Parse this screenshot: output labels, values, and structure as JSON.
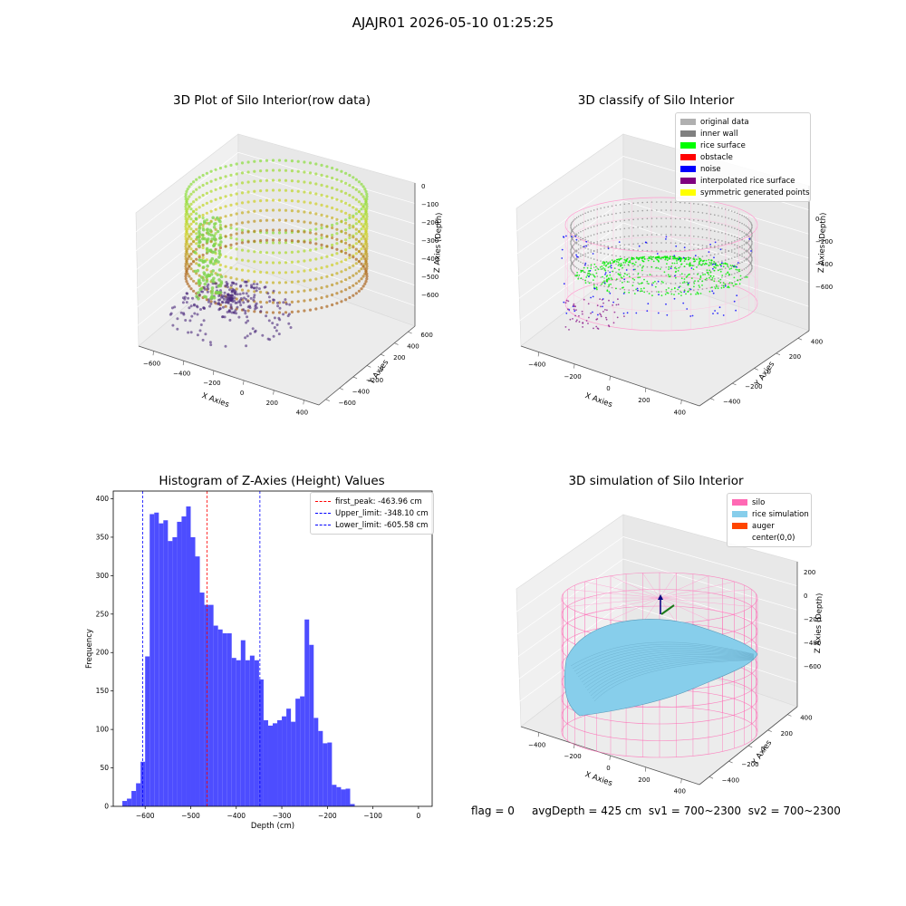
{
  "suptitle": "AJAJR01 2026-05-10 01:25:25",
  "panels": {
    "raw": {
      "title": "3D Plot of Silo Interior(row data)",
      "xlabel": "X Axies",
      "ylabel": "Y Axies",
      "zlabel": "Z Axies (Depth)",
      "xticks": [
        "−600",
        "−400",
        "−200",
        "0",
        "200",
        "400"
      ],
      "yticks": [
        "−600",
        "−400",
        "−200",
        "0",
        "200",
        "400",
        "600"
      ],
      "zticks": [
        "−600",
        "−500",
        "−400",
        "−300",
        "−200",
        "−100",
        "0"
      ]
    },
    "classify": {
      "title": "3D classify of Silo Interior",
      "xlabel": "X Axies",
      "ylabel": "Y Axies",
      "zlabel": "Z Axies (Depth)",
      "xticks": [
        "−400",
        "−200",
        "0",
        "200",
        "400"
      ],
      "yticks": [
        "−400",
        "−200",
        "0",
        "200",
        "400"
      ],
      "zticks": [
        "−600",
        "−400",
        "−200",
        "0"
      ],
      "legend": [
        {
          "label": "original data",
          "color": "#b0b0b0"
        },
        {
          "label": "inner wall",
          "color": "#808080"
        },
        {
          "label": "rice surface",
          "color": "#00ff00"
        },
        {
          "label": "obstacle",
          "color": "#ff0000"
        },
        {
          "label": "noise",
          "color": "#0000ff"
        },
        {
          "label": "interpolated rice surface",
          "color": "#800080"
        },
        {
          "label": "symmetric generated points",
          "color": "#ffff00"
        }
      ]
    },
    "simulation": {
      "title": "3D simulation of Silo Interior",
      "xlabel": "X Axies",
      "ylabel": "Y Axies",
      "zlabel": "Z Axies (Depth)",
      "xticks": [
        "−400",
        "−200",
        "0",
        "200",
        "400"
      ],
      "yticks": [
        "−400",
        "−200",
        "0",
        "200",
        "400"
      ],
      "zticks": [
        "−600",
        "−400",
        "−200",
        "0",
        "200"
      ],
      "legend": [
        {
          "label": "silo",
          "color": "#ff69b4"
        },
        {
          "label": "rice simulation",
          "color": "#87ceeb"
        },
        {
          "label": "auger",
          "color": "#ff4500"
        },
        {
          "label": "center(0,0)",
          "color": "#ffffff"
        }
      ]
    }
  },
  "footer": {
    "flag": "flag = 0",
    "avg_depth": "avgDepth = 425 cm",
    "sv1": "sv1 = 700~2300",
    "sv2": "sv2 = 700~2300"
  },
  "chart_data": [
    {
      "type": "bar",
      "title": "Histogram of Z-Axies (Height) Values",
      "xlabel": "Depth (cm)",
      "ylabel": "Frequency",
      "bar_color": "#4d4dff",
      "bin_start": -650,
      "bin_width": 10,
      "values": [
        7,
        10,
        20,
        30,
        58,
        195,
        380,
        382,
        368,
        372,
        345,
        350,
        370,
        377,
        390,
        350,
        325,
        278,
        262,
        262,
        235,
        230,
        225,
        225,
        193,
        190,
        216,
        190,
        196,
        190,
        165,
        112,
        105,
        108,
        112,
        117,
        127,
        110,
        140,
        143,
        243,
        210,
        115,
        98,
        82,
        83,
        28,
        25,
        22,
        23,
        3
      ],
      "xlim": [
        -670,
        30
      ],
      "ylim": [
        0,
        410
      ],
      "xticks": [
        -600,
        -500,
        -400,
        -300,
        -200,
        -100,
        0
      ],
      "yticks": [
        0,
        50,
        100,
        150,
        200,
        250,
        300,
        350,
        400
      ],
      "xtick_labels": [
        "−600",
        "−500",
        "−400",
        "−300",
        "−200",
        "−100",
        "0"
      ],
      "lines": [
        {
          "label": "first_peak: -463.96 cm",
          "x": -463.96,
          "color": "#ff0000"
        },
        {
          "label": "Upper_limit: -348.10 cm",
          "x": -348.1,
          "color": "#0000ff"
        },
        {
          "label": "Lower_limit: -605.58 cm",
          "x": -605.58,
          "color": "#0000ff"
        }
      ],
      "legend_position": "upper right"
    }
  ]
}
